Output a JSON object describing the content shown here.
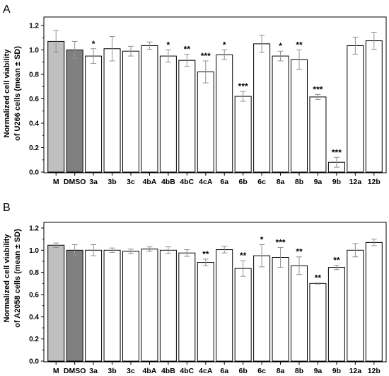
{
  "figure": {
    "panels": [
      "A",
      "B"
    ]
  },
  "chart_data": [
    {
      "type": "bar",
      "panel_label": "A",
      "ylabel_line1": "Normalized cell viability",
      "ylabel_line2": "of U266 cells (mean ± SD)",
      "ylim": [
        0,
        1.2
      ],
      "yticks": [
        "0.0",
        "0.2",
        "0.4",
        "0.6",
        "0.8",
        "1.0",
        "1.2"
      ],
      "categories": [
        "M",
        "DMSO",
        "3a",
        "3b",
        "3c",
        "4bA",
        "4bB",
        "4bC",
        "4cA",
        "6a",
        "6b",
        "6c",
        "8a",
        "8b",
        "9a",
        "9b",
        "12a",
        "12b"
      ],
      "values": [
        1.07,
        1.0,
        0.95,
        1.01,
        0.99,
        1.035,
        0.95,
        0.915,
        0.82,
        0.96,
        0.62,
        1.05,
        0.95,
        0.92,
        0.615,
        0.08,
        1.035,
        1.075
      ],
      "errors": [
        0.09,
        0.07,
        0.06,
        0.1,
        0.04,
        0.03,
        0.05,
        0.05,
        0.09,
        0.04,
        0.04,
        0.07,
        0.04,
        0.08,
        0.02,
        0.04,
        0.07,
        0.07
      ],
      "significance": [
        "",
        "",
        "*",
        "",
        "",
        "",
        "*",
        "**",
        "***",
        "*",
        "***",
        "",
        "*",
        "**",
        "***",
        "***",
        "",
        ""
      ],
      "bar_fills": [
        "#c0c0c0",
        "#808080",
        "#ffffff",
        "#ffffff",
        "#ffffff",
        "#ffffff",
        "#ffffff",
        "#ffffff",
        "#ffffff",
        "#ffffff",
        "#ffffff",
        "#ffffff",
        "#ffffff",
        "#ffffff",
        "#ffffff",
        "#ffffff",
        "#ffffff",
        "#ffffff"
      ],
      "error_bar_color": "#909090"
    },
    {
      "type": "bar",
      "panel_label": "B",
      "ylabel_line1": "Normalized cell viability",
      "ylabel_line2": "of A2058 cells (mean ± SD)",
      "ylim": [
        0,
        1.2
      ],
      "yticks": [
        "0.0",
        "0.2",
        "0.4",
        "0.6",
        "0.8",
        "1.0",
        "1.2"
      ],
      "categories": [
        "M",
        "DMSO",
        "3a",
        "3b",
        "3c",
        "4bA",
        "4bB",
        "4bC",
        "4cA",
        "6a",
        "6b",
        "6c",
        "8a",
        "8b",
        "9a",
        "9b",
        "12a",
        "12b"
      ],
      "values": [
        1.045,
        1.0,
        1.0,
        1.0,
        0.99,
        1.01,
        1.0,
        0.975,
        0.89,
        1.005,
        0.835,
        0.95,
        0.935,
        0.86,
        0.7,
        0.845,
        1.0,
        1.07
      ],
      "errors": [
        0.02,
        0.05,
        0.05,
        0.02,
        0.02,
        0.02,
        0.03,
        0.03,
        0.03,
        0.03,
        0.07,
        0.1,
        0.09,
        0.08,
        0.005,
        0.02,
        0.06,
        0.03
      ],
      "significance": [
        "",
        "",
        "",
        "",
        "",
        "",
        "",
        "",
        "**",
        "",
        "**",
        "*",
        "***",
        "**",
        "**",
        "**",
        "",
        ""
      ],
      "bar_fills": [
        "#c0c0c0",
        "#808080",
        "#ffffff",
        "#ffffff",
        "#ffffff",
        "#ffffff",
        "#ffffff",
        "#ffffff",
        "#ffffff",
        "#ffffff",
        "#ffffff",
        "#ffffff",
        "#ffffff",
        "#ffffff",
        "#ffffff",
        "#ffffff",
        "#ffffff",
        "#ffffff"
      ],
      "error_bar_color": "#909090"
    }
  ]
}
